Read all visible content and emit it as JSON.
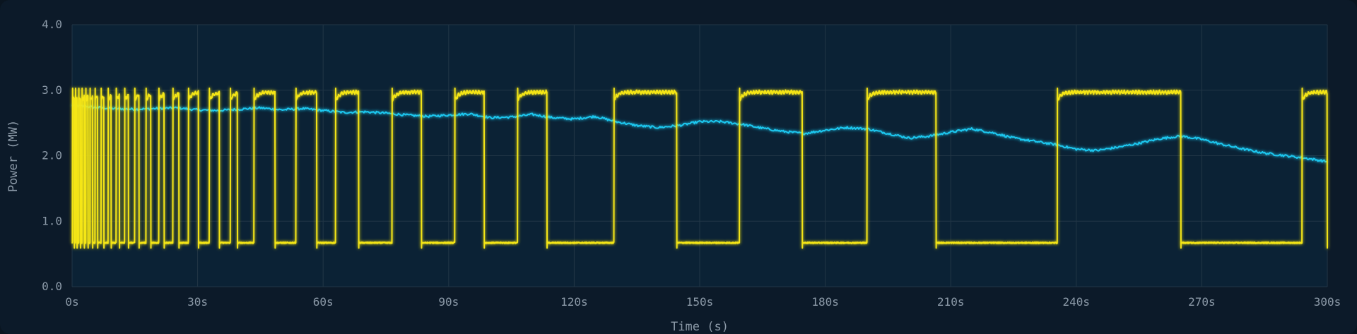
{
  "chart_data": {
    "type": "line",
    "title": "",
    "xlabel": "Time (s)",
    "ylabel": "Power (MW)",
    "xlim": [
      0,
      300
    ],
    "ylim": [
      0,
      4
    ],
    "grid": true,
    "x_ticks": [
      0,
      30,
      60,
      90,
      120,
      150,
      180,
      210,
      240,
      270,
      300
    ],
    "x_tick_labels": [
      "0s",
      "30s",
      "60s",
      "90s",
      "120s",
      "150s",
      "180s",
      "210s",
      "240s",
      "270s",
      "300s"
    ],
    "y_ticks": [
      0,
      1,
      2,
      3,
      4
    ],
    "y_tick_labels": [
      "0.0",
      "1.0",
      "2.0",
      "3.0",
      "4.0"
    ],
    "series": [
      {
        "color": "#f5e616",
        "high": 2.97,
        "low": 0.67,
        "on_intervals": [
          [
            0.1,
            0.5
          ],
          [
            0.8,
            1.2
          ],
          [
            1.6,
            2.0
          ],
          [
            2.4,
            2.9
          ],
          [
            3.3,
            3.8
          ],
          [
            4.3,
            4.9
          ],
          [
            5.5,
            6.1
          ],
          [
            6.9,
            7.6
          ],
          [
            8.6,
            9.3
          ],
          [
            10.5,
            11.3
          ],
          [
            12.6,
            13.5
          ],
          [
            15.0,
            16.0
          ],
          [
            17.7,
            18.8
          ],
          [
            20.7,
            22.0
          ],
          [
            24.1,
            25.5
          ],
          [
            27.8,
            30.2
          ],
          [
            32.8,
            35.2
          ],
          [
            37.8,
            39.5
          ],
          [
            43.5,
            48.5
          ],
          [
            53.5,
            58.5
          ],
          [
            63.0,
            68.5
          ],
          [
            76.5,
            83.5
          ],
          [
            91.5,
            98.5
          ],
          [
            106.5,
            113.5
          ],
          [
            129.5,
            144.5
          ],
          [
            159.5,
            174.5
          ],
          [
            190.0,
            206.5
          ],
          [
            235.5,
            265.0
          ],
          [
            294.0,
            300.0
          ]
        ]
      },
      {
        "color": "#1ec8f0",
        "points": [
          [
            0,
            2.77
          ],
          [
            5,
            2.74
          ],
          [
            10,
            2.72
          ],
          [
            15,
            2.71
          ],
          [
            20,
            2.72
          ],
          [
            25,
            2.73
          ],
          [
            30,
            2.7
          ],
          [
            35,
            2.69
          ],
          [
            40,
            2.71
          ],
          [
            45,
            2.73
          ],
          [
            50,
            2.7
          ],
          [
            55,
            2.72
          ],
          [
            60,
            2.69
          ],
          [
            65,
            2.66
          ],
          [
            70,
            2.67
          ],
          [
            75,
            2.65
          ],
          [
            80,
            2.62
          ],
          [
            85,
            2.6
          ],
          [
            90,
            2.62
          ],
          [
            95,
            2.64
          ],
          [
            100,
            2.58
          ],
          [
            105,
            2.59
          ],
          [
            110,
            2.63
          ],
          [
            115,
            2.58
          ],
          [
            120,
            2.56
          ],
          [
            125,
            2.6
          ],
          [
            130,
            2.52
          ],
          [
            135,
            2.46
          ],
          [
            140,
            2.43
          ],
          [
            145,
            2.46
          ],
          [
            150,
            2.52
          ],
          [
            155,
            2.52
          ],
          [
            160,
            2.48
          ],
          [
            165,
            2.42
          ],
          [
            170,
            2.37
          ],
          [
            175,
            2.34
          ],
          [
            180,
            2.39
          ],
          [
            185,
            2.43
          ],
          [
            190,
            2.41
          ],
          [
            195,
            2.34
          ],
          [
            200,
            2.27
          ],
          [
            205,
            2.3
          ],
          [
            210,
            2.36
          ],
          [
            215,
            2.41
          ],
          [
            220,
            2.35
          ],
          [
            225,
            2.27
          ],
          [
            230,
            2.22
          ],
          [
            235,
            2.17
          ],
          [
            240,
            2.1
          ],
          [
            245,
            2.08
          ],
          [
            250,
            2.13
          ],
          [
            255,
            2.19
          ],
          [
            260,
            2.26
          ],
          [
            265,
            2.3
          ],
          [
            270,
            2.25
          ],
          [
            275,
            2.17
          ],
          [
            280,
            2.1
          ],
          [
            285,
            2.04
          ],
          [
            290,
            2.0
          ],
          [
            295,
            1.96
          ],
          [
            300,
            1.91
          ]
        ]
      }
    ]
  }
}
